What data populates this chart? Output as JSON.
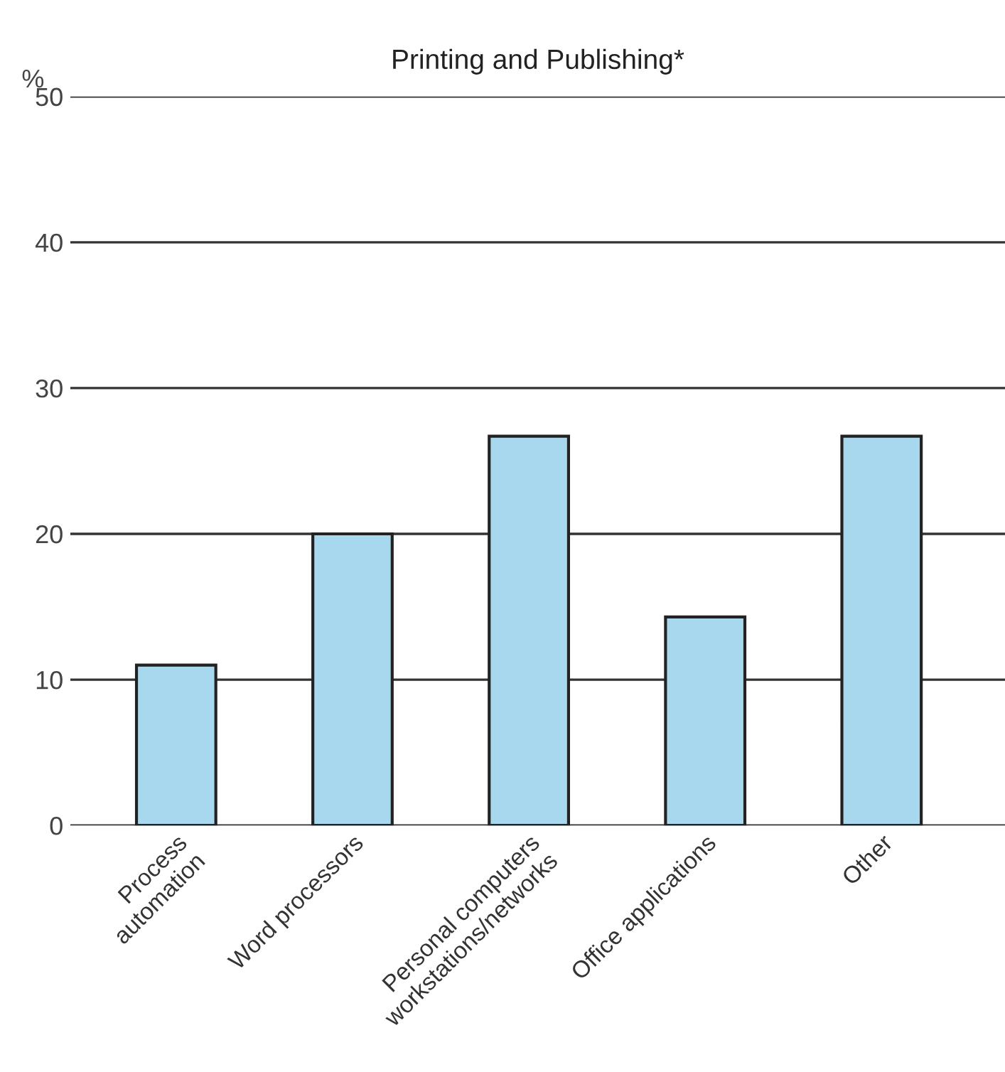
{
  "chart_data": {
    "type": "bar",
    "title": "Printing and Publishing*",
    "ylabel": "%",
    "categories": [
      "Process\nautomation",
      "Word processors",
      "Personal computers\nworkstations/networks",
      "Office applications",
      "Other"
    ],
    "values": [
      11,
      20,
      26.7,
      14.3,
      26.7
    ],
    "color": "#a8d8ee",
    "ylim": [
      0,
      50
    ],
    "yticks": [
      0,
      10,
      20,
      30,
      40,
      50
    ],
    "grid": "y"
  }
}
